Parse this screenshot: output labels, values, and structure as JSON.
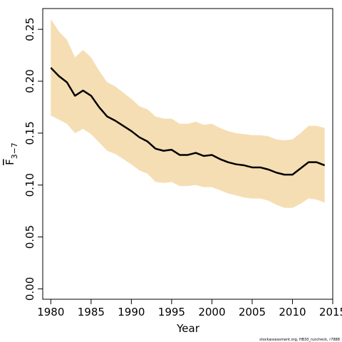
{
  "chart_data": {
    "type": "area",
    "xlabel": "Year",
    "ylabel": {
      "base": "F",
      "subscript": "3−7"
    },
    "xlim": [
      1979,
      2015
    ],
    "ylim": [
      -0.01,
      0.27
    ],
    "xticks": [
      1980,
      1985,
      1990,
      1995,
      2000,
      2005,
      2010,
      2015
    ],
    "xtick_labels": [
      "1980",
      "1985",
      "1990",
      "1995",
      "2000",
      "2005",
      "2010",
      "2015"
    ],
    "yticks": [
      0.0,
      0.05,
      0.1,
      0.15,
      0.2,
      0.25
    ],
    "ytick_labels": [
      "0.00",
      "0.05",
      "0.10",
      "0.15",
      "0.20",
      "0.25"
    ],
    "grid": false,
    "band_color": "#f5deb3",
    "line_color": "#000000",
    "x": [
      1980,
      1981,
      1982,
      1983,
      1984,
      1985,
      1986,
      1987,
      1988,
      1989,
      1990,
      1991,
      1992,
      1993,
      1994,
      1995,
      1996,
      1997,
      1998,
      1999,
      2000,
      2001,
      2002,
      2003,
      2004,
      2005,
      2006,
      2007,
      2008,
      2009,
      2010,
      2011,
      2012,
      2013,
      2014
    ],
    "series": [
      {
        "values": [
          0.213,
          0.205,
          0.199,
          0.186,
          0.191,
          0.186,
          0.175,
          0.166,
          0.162,
          0.157,
          0.152,
          0.146,
          0.142,
          0.135,
          0.133,
          0.134,
          0.129,
          0.129,
          0.131,
          0.128,
          0.129,
          0.125,
          0.122,
          0.12,
          0.119,
          0.117,
          0.117,
          0.115,
          0.112,
          0.11,
          0.11,
          0.116,
          0.122,
          0.122,
          0.119
        ],
        "lower": [
          0.167,
          0.163,
          0.159,
          0.15,
          0.154,
          0.149,
          0.141,
          0.133,
          0.13,
          0.125,
          0.12,
          0.114,
          0.111,
          0.103,
          0.102,
          0.103,
          0.099,
          0.099,
          0.1,
          0.098,
          0.098,
          0.095,
          0.092,
          0.09,
          0.088,
          0.087,
          0.087,
          0.085,
          0.081,
          0.078,
          0.078,
          0.082,
          0.087,
          0.086,
          0.083
        ],
        "upper": [
          0.26,
          0.248,
          0.24,
          0.223,
          0.23,
          0.223,
          0.21,
          0.199,
          0.195,
          0.189,
          0.183,
          0.176,
          0.173,
          0.166,
          0.164,
          0.164,
          0.159,
          0.159,
          0.161,
          0.158,
          0.159,
          0.155,
          0.152,
          0.15,
          0.149,
          0.148,
          0.148,
          0.147,
          0.144,
          0.143,
          0.144,
          0.15,
          0.157,
          0.157,
          0.155
        ]
      }
    ]
  },
  "footer": "stockassessment.org, HB30_runcheck, r7888"
}
